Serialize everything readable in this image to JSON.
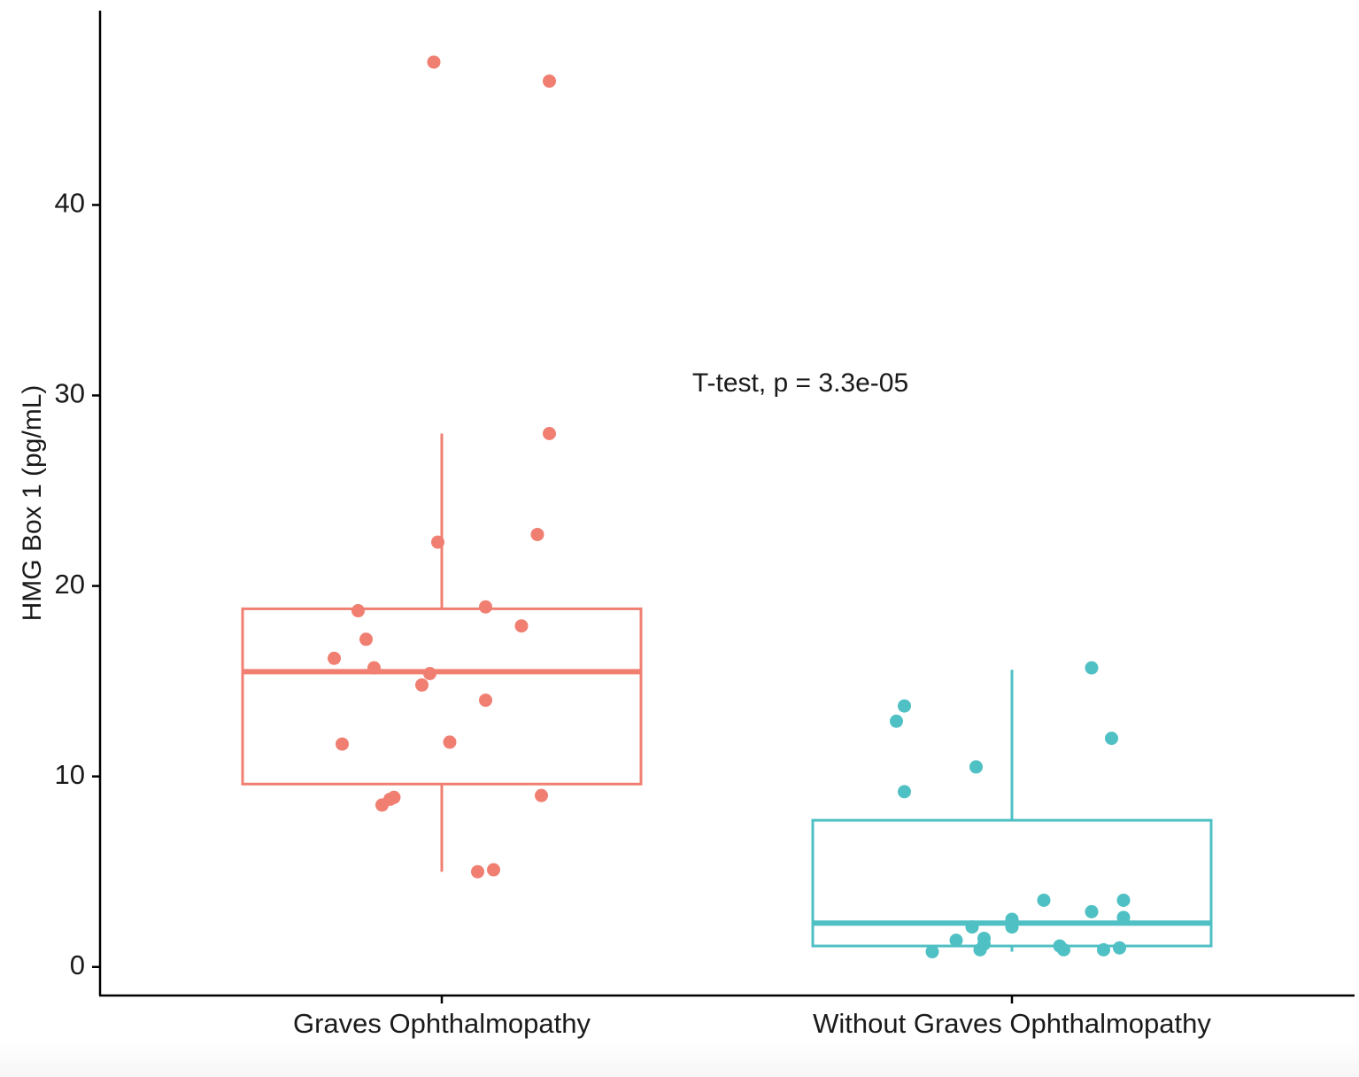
{
  "chart_data": {
    "type": "box",
    "title": "",
    "xlabel": "",
    "ylabel": "HMG Box 1 (pg/mL)",
    "ylim": [
      -1.5,
      50.2
    ],
    "yticks": [
      0,
      10,
      20,
      30,
      40
    ],
    "ytick_labels": [
      "0",
      "10",
      "20",
      "30",
      "40"
    ],
    "grid": false,
    "legend": "none",
    "annotation": "T-test, p = 3.3e-05",
    "categories": [
      "Graves Ophthalmopathy",
      "Without Graves Ophthalmopathy"
    ],
    "colors": [
      "#f07f72",
      "#4fc0c4"
    ],
    "boxes": [
      {
        "category": "Graves Ophthalmopathy",
        "whisker_low": 5.0,
        "q1": 9.6,
        "median": 15.5,
        "q3": 18.8,
        "whisker_high": 28.0
      },
      {
        "category": "Without Graves Ophthalmopathy",
        "whisker_low": 0.8,
        "q1": 1.1,
        "median": 2.3,
        "q3": 7.7,
        "whisker_high": 15.6
      }
    ],
    "points": [
      {
        "category": "Graves Ophthalmopathy",
        "jitter": -0.02,
        "y": 47.5
      },
      {
        "category": "Graves Ophthalmopathy",
        "jitter": 0.27,
        "y": 46.5
      },
      {
        "category": "Graves Ophthalmopathy",
        "jitter": 0.27,
        "y": 28.0
      },
      {
        "category": "Graves Ophthalmopathy",
        "jitter": 0.24,
        "y": 22.7
      },
      {
        "category": "Graves Ophthalmopathy",
        "jitter": -0.01,
        "y": 22.3
      },
      {
        "category": "Graves Ophthalmopathy",
        "jitter": 0.11,
        "y": 18.9
      },
      {
        "category": "Graves Ophthalmopathy",
        "jitter": -0.21,
        "y": 18.7
      },
      {
        "category": "Graves Ophthalmopathy",
        "jitter": 0.2,
        "y": 17.9
      },
      {
        "category": "Graves Ophthalmopathy",
        "jitter": -0.19,
        "y": 17.2
      },
      {
        "category": "Graves Ophthalmopathy",
        "jitter": -0.27,
        "y": 16.2
      },
      {
        "category": "Graves Ophthalmopathy",
        "jitter": -0.17,
        "y": 15.7
      },
      {
        "category": "Graves Ophthalmopathy",
        "jitter": -0.03,
        "y": 15.4
      },
      {
        "category": "Graves Ophthalmopathy",
        "jitter": -0.05,
        "y": 14.8
      },
      {
        "category": "Graves Ophthalmopathy",
        "jitter": 0.11,
        "y": 14.0
      },
      {
        "category": "Graves Ophthalmopathy",
        "jitter": -0.25,
        "y": 11.7
      },
      {
        "category": "Graves Ophthalmopathy",
        "jitter": 0.02,
        "y": 11.8
      },
      {
        "category": "Graves Ophthalmopathy",
        "jitter": 0.25,
        "y": 9.0
      },
      {
        "category": "Graves Ophthalmopathy",
        "jitter": -0.12,
        "y": 8.9
      },
      {
        "category": "Graves Ophthalmopathy",
        "jitter": -0.13,
        "y": 8.8
      },
      {
        "category": "Graves Ophthalmopathy",
        "jitter": -0.15,
        "y": 8.5
      },
      {
        "category": "Graves Ophthalmopathy",
        "jitter": 0.13,
        "y": 5.1
      },
      {
        "category": "Graves Ophthalmopathy",
        "jitter": 0.09,
        "y": 5.0
      },
      {
        "category": "Without Graves Ophthalmopathy",
        "jitter": 0.2,
        "y": 15.7
      },
      {
        "category": "Without Graves Ophthalmopathy",
        "jitter": -0.27,
        "y": 13.7
      },
      {
        "category": "Without Graves Ophthalmopathy",
        "jitter": -0.29,
        "y": 12.9
      },
      {
        "category": "Without Graves Ophthalmopathy",
        "jitter": 0.25,
        "y": 12.0
      },
      {
        "category": "Without Graves Ophthalmopathy",
        "jitter": -0.09,
        "y": 10.5
      },
      {
        "category": "Without Graves Ophthalmopathy",
        "jitter": -0.27,
        "y": 9.2
      },
      {
        "category": "Without Graves Ophthalmopathy",
        "jitter": 0.08,
        "y": 3.5
      },
      {
        "category": "Without Graves Ophthalmopathy",
        "jitter": 0.28,
        "y": 3.5
      },
      {
        "category": "Without Graves Ophthalmopathy",
        "jitter": 0.2,
        "y": 2.9
      },
      {
        "category": "Without Graves Ophthalmopathy",
        "jitter": 0.28,
        "y": 2.6
      },
      {
        "category": "Without Graves Ophthalmopathy",
        "jitter": 0.0,
        "y": 2.5
      },
      {
        "category": "Without Graves Ophthalmopathy",
        "jitter": -0.1,
        "y": 2.1
      },
      {
        "category": "Without Graves Ophthalmopathy",
        "jitter": 0.0,
        "y": 2.1
      },
      {
        "category": "Without Graves Ophthalmopathy",
        "jitter": -0.07,
        "y": 1.5
      },
      {
        "category": "Without Graves Ophthalmopathy",
        "jitter": -0.14,
        "y": 1.4
      },
      {
        "category": "Without Graves Ophthalmopathy",
        "jitter": -0.07,
        "y": 1.2
      },
      {
        "category": "Without Graves Ophthalmopathy",
        "jitter": 0.12,
        "y": 1.1
      },
      {
        "category": "Without Graves Ophthalmopathy",
        "jitter": 0.27,
        "y": 1.0
      },
      {
        "category": "Without Graves Ophthalmopathy",
        "jitter": -0.08,
        "y": 0.9
      },
      {
        "category": "Without Graves Ophthalmopathy",
        "jitter": 0.13,
        "y": 0.9
      },
      {
        "category": "Without Graves Ophthalmopathy",
        "jitter": 0.23,
        "y": 0.9
      },
      {
        "category": "Without Graves Ophthalmopathy",
        "jitter": -0.2,
        "y": 0.8
      }
    ]
  }
}
